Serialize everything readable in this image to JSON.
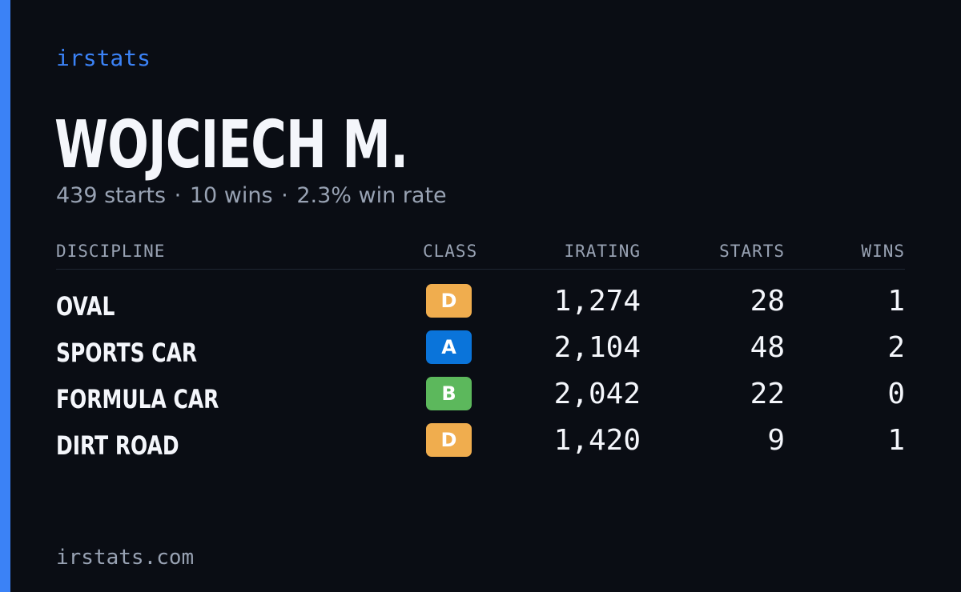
{
  "brand": "irstats",
  "driver": {
    "name": "WOJCIECH M.",
    "summary": {
      "starts": "439 starts",
      "wins": "10 wins",
      "win_rate": "2.3% win rate",
      "separator": "·"
    }
  },
  "table": {
    "headers": {
      "discipline": "DISCIPLINE",
      "class": "CLASS",
      "irating": "IRATING",
      "starts": "STARTS",
      "wins": "WINS"
    },
    "rows": [
      {
        "discipline": "OVAL",
        "class": "D",
        "class_color": "#f0ad4e",
        "irating": "1,274",
        "starts": "28",
        "wins": "1"
      },
      {
        "discipline": "SPORTS CAR",
        "class": "A",
        "class_color": "#0a74da",
        "irating": "2,104",
        "starts": "48",
        "wins": "2"
      },
      {
        "discipline": "FORMULA CAR",
        "class": "B",
        "class_color": "#5cb85c",
        "irating": "2,042",
        "starts": "22",
        "wins": "0"
      },
      {
        "discipline": "DIRT ROAD",
        "class": "D",
        "class_color": "#f0ad4e",
        "irating": "1,420",
        "starts": "9",
        "wins": "1"
      }
    ]
  },
  "footer": "irstats.com",
  "colors": {
    "background": "#0a0d14",
    "accent": "#3b82f6",
    "text": "#f4f6fb",
    "muted": "#98a2b3"
  }
}
